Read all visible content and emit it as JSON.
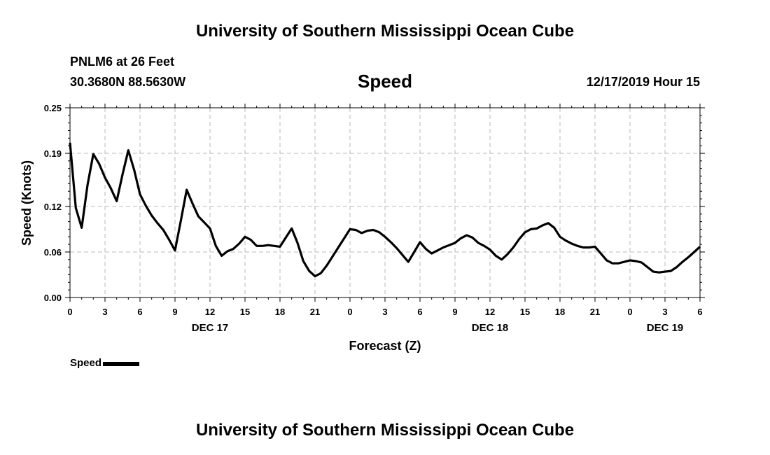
{
  "page": {
    "header_title": "University of Southern Mississippi Ocean Cube",
    "footer_title": "University of Southern Mississippi Ocean Cube",
    "station_name": "PNLM6 at 26 Feet",
    "station_coords": "30.3680N 88.5630W",
    "timestamp": "12/17/2019 Hour 15"
  },
  "chart_data": {
    "type": "line",
    "title": "Speed",
    "xlabel": "Forecast (Z)",
    "ylabel": "Speed (Knots)",
    "ylim": [
      0,
      0.25
    ],
    "yticks": [
      0.0,
      0.06,
      0.12,
      0.19,
      0.25
    ],
    "ytick_labels": [
      "0.00",
      "0.06",
      "0.12",
      "0.19",
      "0.25"
    ],
    "xlim": [
      0,
      54
    ],
    "xticks": [
      0,
      3,
      6,
      9,
      12,
      15,
      18,
      21,
      24,
      27,
      30,
      33,
      36,
      39,
      42,
      45,
      48,
      51,
      54
    ],
    "xtick_labels": [
      "0",
      "3",
      "6",
      "9",
      "12",
      "15",
      "18",
      "21",
      "0",
      "3",
      "6",
      "9",
      "12",
      "15",
      "18",
      "21",
      "0",
      "3",
      "6"
    ],
    "day_labels": [
      {
        "x": 12,
        "label": "DEC 17"
      },
      {
        "x": 36,
        "label": "DEC 18"
      },
      {
        "x": 51,
        "label": "DEC 19"
      }
    ],
    "grid": true,
    "legend_position": "bottom-left",
    "series": [
      {
        "name": "Speed",
        "color": "#000000",
        "x": [
          0,
          0.5,
          1,
          1.5,
          2,
          2.5,
          3,
          3.5,
          4,
          4.5,
          5,
          5.5,
          6,
          6.5,
          7,
          7.5,
          8,
          8.5,
          9,
          9.5,
          10,
          10.5,
          11,
          11.5,
          12,
          12.5,
          13,
          13.5,
          14,
          14.5,
          15,
          15.5,
          16,
          16.5,
          17,
          17.5,
          18,
          18.5,
          19,
          19.5,
          20,
          20.5,
          21,
          21.5,
          22,
          22.5,
          23,
          23.5,
          24,
          24.5,
          25,
          25.5,
          26,
          26.5,
          27,
          27.5,
          28,
          28.5,
          29,
          29.5,
          30,
          30.5,
          31,
          31.5,
          32,
          32.5,
          33,
          33.5,
          34,
          34.5,
          35,
          35.5,
          36,
          36.5,
          37,
          37.5,
          38,
          38.5,
          39,
          39.5,
          40,
          40.5,
          41,
          41.5,
          42,
          42.5,
          43,
          43.5,
          44,
          44.5,
          45,
          45.5,
          46,
          46.5,
          47,
          47.5,
          48,
          48.5,
          49,
          49.5,
          50,
          50.5,
          51,
          51.5,
          52,
          52.5,
          53,
          53.5,
          54
        ],
        "values": [
          0.204,
          0.118,
          0.092,
          0.148,
          0.189,
          0.176,
          0.158,
          0.144,
          0.127,
          0.162,
          0.194,
          0.168,
          0.136,
          0.121,
          0.108,
          0.098,
          0.089,
          0.076,
          0.062,
          0.101,
          0.142,
          0.124,
          0.107,
          0.099,
          0.091,
          0.068,
          0.055,
          0.061,
          0.064,
          0.071,
          0.08,
          0.076,
          0.068,
          0.068,
          0.069,
          0.068,
          0.067,
          0.079,
          0.091,
          0.072,
          0.048,
          0.035,
          0.028,
          0.032,
          0.042,
          0.054,
          0.066,
          0.078,
          0.09,
          0.089,
          0.085,
          0.088,
          0.089,
          0.086,
          0.08,
          0.073,
          0.065,
          0.056,
          0.047,
          0.06,
          0.073,
          0.064,
          0.058,
          0.062,
          0.066,
          0.069,
          0.072,
          0.078,
          0.082,
          0.079,
          0.072,
          0.068,
          0.063,
          0.055,
          0.05,
          0.057,
          0.066,
          0.077,
          0.086,
          0.09,
          0.091,
          0.095,
          0.098,
          0.092,
          0.08,
          0.075,
          0.071,
          0.068,
          0.066,
          0.066,
          0.067,
          0.058,
          0.049,
          0.045,
          0.045,
          0.047,
          0.049,
          0.048,
          0.046,
          0.04,
          0.034,
          0.033,
          0.034,
          0.035,
          0.04,
          0.047,
          0.053,
          0.06,
          0.067
        ]
      }
    ]
  }
}
